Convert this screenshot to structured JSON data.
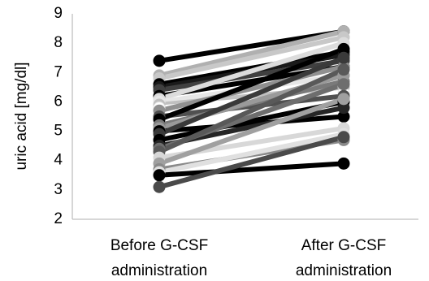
{
  "chart_data": {
    "type": "line",
    "title": "",
    "ylabel": "uric acid [mg/dl]",
    "xlabel": "",
    "categories": [
      [
        "Before G-CSF",
        "administration"
      ],
      [
        "After G-CSF",
        "administration"
      ]
    ],
    "ylim": [
      2,
      9
    ],
    "yticks": [
      2,
      3,
      4,
      5,
      6,
      7,
      8,
      9
    ],
    "grid": false,
    "legend": "none",
    "series": [
      {
        "values": [
          7.4,
          8.4
        ],
        "color": "#000000"
      },
      {
        "values": [
          6.9,
          8.4
        ],
        "color": "#b0b0b0"
      },
      {
        "values": [
          6.8,
          8.2
        ],
        "color": "#c8c8c8"
      },
      {
        "values": [
          6.6,
          7.7
        ],
        "color": "#000000"
      },
      {
        "values": [
          6.5,
          7.6
        ],
        "color": "#1a1a1a"
      },
      {
        "values": [
          6.4,
          7.4
        ],
        "color": "#404040"
      },
      {
        "values": [
          6.2,
          7.2
        ],
        "color": "#000000"
      },
      {
        "values": [
          6.1,
          8.0
        ],
        "color": "#dcdcdc"
      },
      {
        "values": [
          6.0,
          6.9
        ],
        "color": "#e6e6e6"
      },
      {
        "values": [
          5.9,
          6.5
        ],
        "color": "#c0c0c0"
      },
      {
        "values": [
          5.8,
          6.3
        ],
        "color": "#ffffff"
      },
      {
        "values": [
          5.7,
          7.2
        ],
        "color": "#909090"
      },
      {
        "values": [
          5.5,
          6.2
        ],
        "color": "#505050"
      },
      {
        "values": [
          5.4,
          7.8
        ],
        "color": "#000000"
      },
      {
        "values": [
          5.2,
          6.7
        ],
        "color": "#7a7a7a"
      },
      {
        "values": [
          5.1,
          6.9
        ],
        "color": "#9a9a9a"
      },
      {
        "values": [
          5.0,
          5.5
        ],
        "color": "#000000"
      },
      {
        "values": [
          4.9,
          7.5
        ],
        "color": "#3a3a3a"
      },
      {
        "values": [
          4.7,
          6.0
        ],
        "color": "#000000"
      },
      {
        "values": [
          4.5,
          5.8
        ],
        "color": "#262626"
      },
      {
        "values": [
          4.4,
          6.6
        ],
        "color": "#6e6e6e"
      },
      {
        "values": [
          4.3,
          7.1
        ],
        "color": "#595959"
      },
      {
        "values": [
          4.1,
          5.1
        ],
        "color": "#d8d8d8"
      },
      {
        "values": [
          3.9,
          6.1
        ],
        "color": "#a0a0a0"
      },
      {
        "values": [
          3.7,
          4.7
        ],
        "color": "#8a8a8a"
      },
      {
        "values": [
          3.6,
          4.9
        ],
        "color": "#e0e0e0"
      },
      {
        "values": [
          3.5,
          3.9
        ],
        "color": "#000000"
      },
      {
        "values": [
          3.1,
          4.8
        ],
        "color": "#4a4a4a"
      }
    ]
  }
}
